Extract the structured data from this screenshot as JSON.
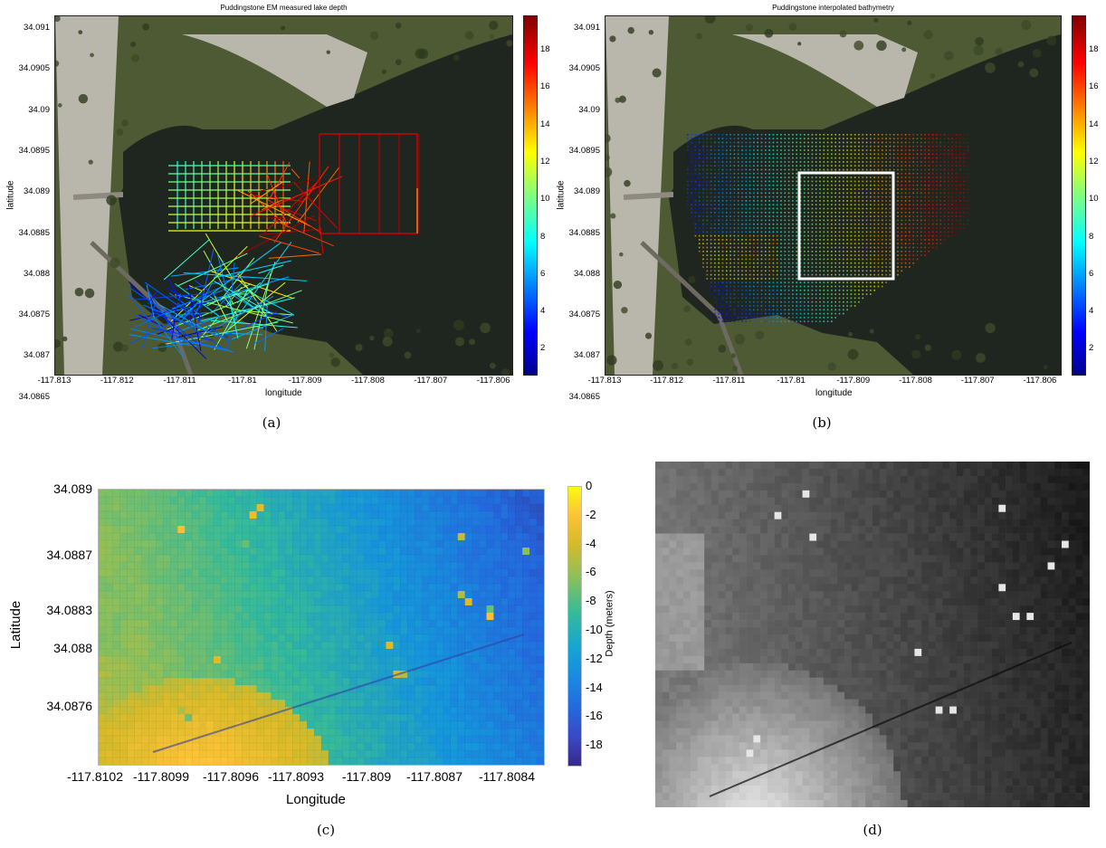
{
  "panel_a": {
    "title": "Puddingstone EM measured lake depth",
    "xlabel": "longitude",
    "ylabel": "latitude",
    "yticks": [
      "34.091",
      "34.0905",
      "34.09",
      "34.0895",
      "34.089",
      "34.0885",
      "34.088",
      "34.0875",
      "34.087",
      "34.0865"
    ],
    "xticks": [
      "-117.813",
      "-117.812",
      "-117.811",
      "-117.81",
      "-117.809",
      "-117.808",
      "-117.807",
      "-117.806"
    ],
    "cbar_ticks": [
      "18",
      "16",
      "14",
      "12",
      "10",
      "8",
      "6",
      "4",
      "2"
    ],
    "caption": "(a)"
  },
  "panel_b": {
    "title": "Puddingstone interpolated bathymetry",
    "xlabel": "longitude",
    "ylabel": "latitude",
    "yticks": [
      "34.091",
      "34.0905",
      "34.09",
      "34.0895",
      "34.089",
      "34.0885",
      "34.088",
      "34.0875",
      "34.087",
      "34.0865"
    ],
    "xticks": [
      "-117.813",
      "-117.812",
      "-117.811",
      "-117.81",
      "-117.809",
      "-117.808",
      "-117.807",
      "-117.806"
    ],
    "cbar_ticks": [
      "18",
      "16",
      "14",
      "12",
      "10",
      "8",
      "6",
      "4",
      "2"
    ],
    "caption": "(b)"
  },
  "panel_c": {
    "xlabel": "Longitude",
    "ylabel": "Latitude",
    "cbar_label": "Depth (meters)",
    "yticks": [
      "34.089",
      "34.0887",
      "34.0883",
      "34.088",
      "34.0876"
    ],
    "xticks": [
      "-117.8102",
      "-117.8099",
      "-117.8096",
      "-117.8093",
      "-117.809",
      "-117.8087",
      "-117.8084"
    ],
    "cbar_ticks": [
      "0",
      "-2",
      "-4",
      "-6",
      "-8",
      "-10",
      "-12",
      "-14",
      "-16",
      "-18"
    ],
    "caption": "(c)"
  },
  "panel_d": {
    "caption": "(d)"
  },
  "colors": {
    "water": "#1f2620",
    "land": "#4d5a33",
    "dam": "#b9b6ab",
    "parula_low": "#352a87",
    "parula_high": "#f9fb0e",
    "jet_low": "#00008f",
    "jet_high": "#800000"
  },
  "chart_data": [
    {
      "type": "scatter",
      "title": "Puddingstone EM measured lake depth",
      "xlabel": "longitude",
      "ylabel": "latitude",
      "xlim": [
        -117.813,
        -117.806
      ],
      "ylim": [
        34.0862,
        34.0913
      ],
      "colorbar": {
        "colormap": "jet",
        "range": [
          1,
          19.5
        ],
        "ticks": [
          2,
          4,
          6,
          8,
          10,
          12,
          14,
          16,
          18
        ]
      }
    },
    {
      "type": "heatmap",
      "title": "Puddingstone interpolated bathymetry",
      "xlabel": "longitude",
      "ylabel": "latitude",
      "xlim": [
        -117.813,
        -117.806
      ],
      "ylim": [
        34.0862,
        34.0913
      ],
      "colorbar": {
        "colormap": "jet",
        "range": [
          1,
          19.5
        ],
        "ticks": [
          2,
          4,
          6,
          8,
          10,
          12,
          14,
          16,
          18
        ]
      }
    },
    {
      "type": "heatmap",
      "xlabel": "Longitude",
      "ylabel": "Latitude",
      "xlim": [
        -117.8103,
        -117.80825
      ],
      "ylim": [
        34.0874,
        34.089
      ],
      "colorbar": {
        "colormap": "parula",
        "label": "Depth (meters)",
        "range": [
          -19,
          0
        ],
        "ticks": [
          0,
          -2,
          -4,
          -6,
          -8,
          -10,
          -12,
          -14,
          -16,
          -18
        ]
      }
    },
    {
      "type": "heatmap",
      "colormap": "gray"
    }
  ]
}
